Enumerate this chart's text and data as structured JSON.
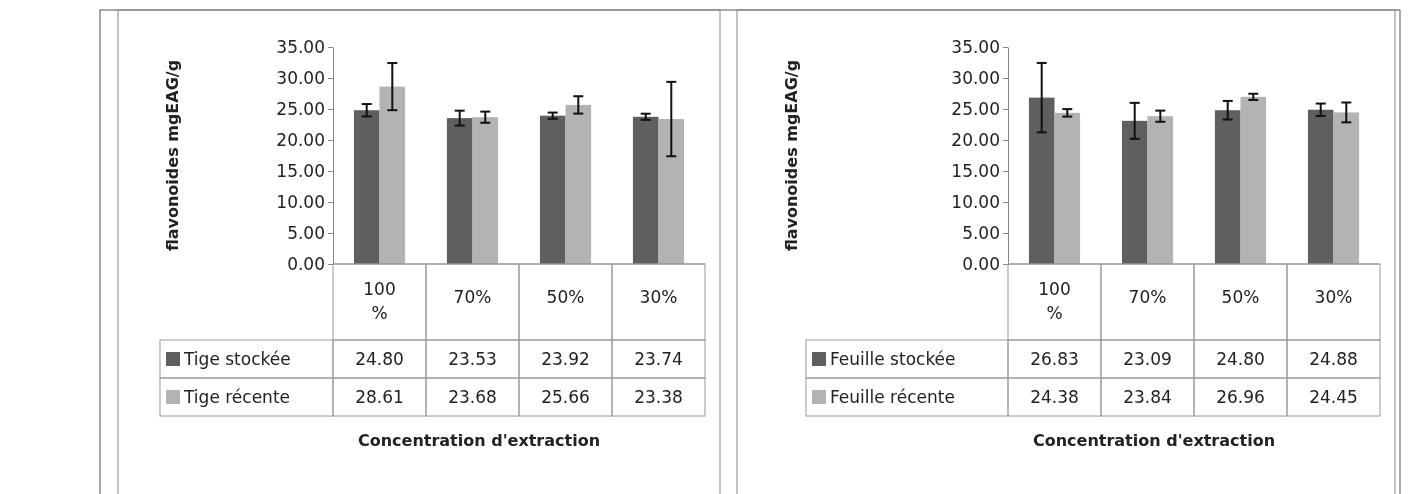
{
  "chart_data": [
    {
      "type": "bar",
      "categories": [
        "100 %",
        "70%",
        "50%",
        "30%"
      ],
      "xlabel": "Concentration d'extraction",
      "ylabel": "flavonoides mgEAG/g",
      "ylim": [
        0,
        35
      ],
      "yticks": [
        {
          "value": 0,
          "label": "0.00"
        },
        {
          "value": 5,
          "label": "5.00"
        },
        {
          "value": 10,
          "label": "10.00"
        },
        {
          "value": 15,
          "label": "15.00"
        },
        {
          "value": 20,
          "label": "20.00"
        },
        {
          "value": 25,
          "label": "25.00"
        },
        {
          "value": 30,
          "label": "30.00"
        },
        {
          "value": 35,
          "label": "35.00"
        }
      ],
      "legend": "bottom",
      "grid": false,
      "series": [
        {
          "name": "Tige stockée",
          "color": "#5f5f5f",
          "values": [
            24.8,
            23.53,
            23.92,
            23.74
          ],
          "value_labels": [
            "24.80",
            "23.53",
            "23.92",
            "23.74"
          ],
          "errors": [
            1.0,
            1.2,
            0.5,
            0.5
          ]
        },
        {
          "name": "Tige récente",
          "color": "#b3b3b3",
          "values": [
            28.61,
            23.68,
            25.66,
            23.38
          ],
          "value_labels": [
            "28.61",
            "23.68",
            "25.66",
            "23.38"
          ],
          "errors": [
            3.8,
            0.9,
            1.4,
            6.0
          ]
        }
      ]
    },
    {
      "type": "bar",
      "categories": [
        "100 %",
        "70%",
        "50%",
        "30%"
      ],
      "xlabel": "Concentration d'extraction",
      "ylabel": "flavonoides mgEAG/g",
      "ylim": [
        0,
        35
      ],
      "yticks": [
        {
          "value": 0,
          "label": "0.00"
        },
        {
          "value": 5,
          "label": "5.00"
        },
        {
          "value": 10,
          "label": "10.00"
        },
        {
          "value": 15,
          "label": "15.00"
        },
        {
          "value": 20,
          "label": "20.00"
        },
        {
          "value": 25,
          "label": "25.00"
        },
        {
          "value": 30,
          "label": "30.00"
        },
        {
          "value": 35,
          "label": "35.00"
        }
      ],
      "legend": "bottom",
      "grid": false,
      "series": [
        {
          "name": "Feuille stockée",
          "color": "#5f5f5f",
          "values": [
            26.83,
            23.09,
            24.8,
            24.88
          ],
          "value_labels": [
            "26.83",
            "23.09",
            "24.80",
            "24.88"
          ],
          "errors": [
            5.6,
            2.9,
            1.5,
            1.0
          ]
        },
        {
          "name": "Feuille récente",
          "color": "#b3b3b3",
          "values": [
            24.38,
            23.84,
            26.96,
            24.45
          ],
          "value_labels": [
            "24.38",
            "23.84",
            "26.96",
            "24.45"
          ],
          "errors": [
            0.6,
            0.9,
            0.5,
            1.6
          ]
        }
      ]
    }
  ]
}
